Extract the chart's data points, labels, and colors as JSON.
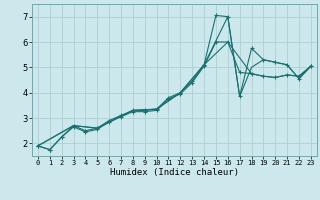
{
  "xlabel": "Humidex (Indice chaleur)",
  "bg_color": "#cce8ec",
  "grid_color": "#aad0d4",
  "line_color": "#1a7070",
  "xlim": [
    -0.5,
    23.5
  ],
  "ylim": [
    1.5,
    7.5
  ],
  "xticks": [
    0,
    1,
    2,
    3,
    4,
    5,
    6,
    7,
    8,
    9,
    10,
    11,
    12,
    13,
    14,
    15,
    16,
    17,
    18,
    19,
    20,
    21,
    22,
    23
  ],
  "yticks": [
    2,
    3,
    4,
    5,
    6,
    7
  ],
  "series_spike": {
    "x": [
      0,
      1,
      2,
      3,
      4,
      5,
      6,
      7,
      8,
      9,
      10,
      11,
      12,
      13,
      14,
      15,
      16,
      17,
      18,
      19,
      20,
      21,
      22,
      23
    ],
    "y": [
      1.9,
      1.75,
      2.25,
      2.7,
      2.5,
      2.6,
      2.9,
      3.1,
      3.3,
      3.3,
      3.35,
      3.8,
      4.0,
      4.45,
      5.1,
      7.05,
      7.0,
      3.85,
      5.75,
      5.3,
      5.2,
      5.1,
      4.55,
      5.05
    ]
  },
  "series_curved": {
    "x": [
      0,
      1,
      2,
      3,
      4,
      5,
      6,
      7,
      8,
      9,
      10,
      11,
      12,
      13,
      14,
      15,
      16,
      17,
      18,
      19,
      20,
      21,
      22,
      23
    ],
    "y": [
      1.9,
      1.75,
      2.25,
      2.65,
      2.45,
      2.55,
      2.85,
      3.05,
      3.25,
      3.25,
      3.3,
      3.75,
      3.95,
      4.4,
      5.05,
      6.0,
      6.0,
      4.8,
      4.75,
      4.65,
      4.6,
      4.7,
      4.65,
      5.05
    ]
  },
  "series_sparse1": {
    "x": [
      0,
      3,
      5,
      8,
      10,
      12,
      14,
      16,
      17,
      18,
      19,
      20,
      21,
      22,
      23
    ],
    "y": [
      1.9,
      2.7,
      2.6,
      3.3,
      3.35,
      4.0,
      5.1,
      7.0,
      3.85,
      5.0,
      5.3,
      5.2,
      5.1,
      4.55,
      5.05
    ]
  },
  "series_sparse2": {
    "x": [
      0,
      3,
      5,
      8,
      10,
      12,
      14,
      16,
      18,
      19,
      20,
      21,
      22,
      23
    ],
    "y": [
      1.9,
      2.7,
      2.6,
      3.3,
      3.35,
      4.0,
      5.1,
      6.0,
      4.75,
      4.65,
      4.6,
      4.7,
      4.65,
      5.05
    ]
  }
}
